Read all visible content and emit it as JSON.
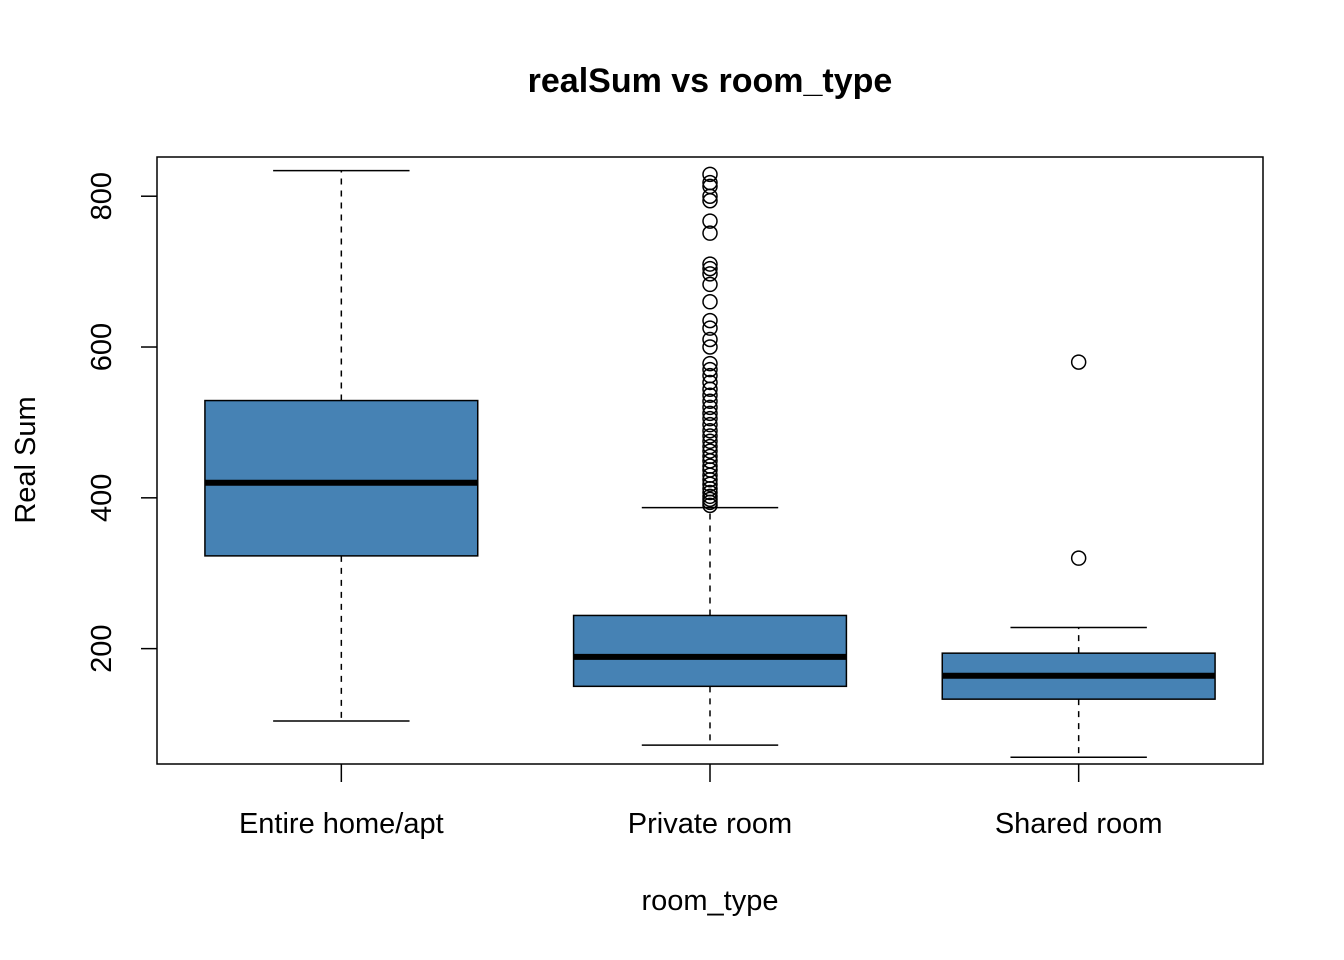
{
  "chart_data": {
    "type": "box",
    "title": "realSum vs room_type",
    "xlabel": "room_type",
    "ylabel": "Real Sum",
    "ylim": [
      47,
      852
    ],
    "yticks": [
      200,
      400,
      600,
      800
    ],
    "box_color": "#4682b4",
    "categories": [
      "Entire home/apt",
      "Private room",
      "Shared room"
    ],
    "boxes": [
      {
        "category": "Entire home/apt",
        "whisker_low": 104,
        "q1": 323,
        "median": 420,
        "q3": 529,
        "whisker_high": 834,
        "outliers": []
      },
      {
        "category": "Private room",
        "whisker_low": 72,
        "q1": 150,
        "median": 189,
        "q3": 244,
        "whisker_high": 387,
        "outliers": [
          390,
          394,
          398,
          402,
          407,
          412,
          418,
          424,
          430,
          437,
          442,
          449,
          455,
          462,
          468,
          475,
          482,
          489,
          497,
          505,
          512,
          520,
          528,
          536,
          544,
          553,
          562,
          570,
          578,
          600,
          610,
          625,
          635,
          660,
          683,
          697,
          704,
          710,
          751,
          767,
          794,
          800,
          813,
          818,
          829
        ]
      },
      {
        "category": "Shared room",
        "whisker_low": 56,
        "q1": 133,
        "median": 164,
        "q3": 194,
        "whisker_high": 228,
        "outliers": [
          320,
          580
        ]
      }
    ]
  }
}
